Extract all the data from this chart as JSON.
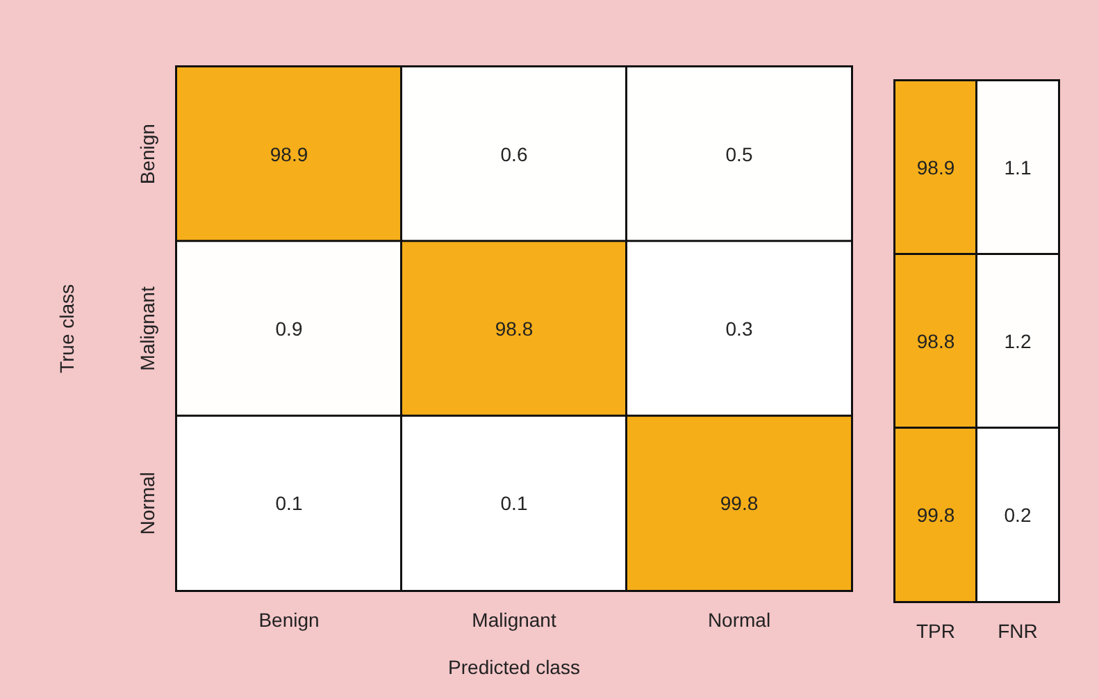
{
  "chart_data": [
    {
      "type": "heatmap",
      "xlabel": "Predicted class",
      "ylabel": "True class",
      "categories": [
        "Benign",
        "Malignant",
        "Normal"
      ],
      "y_categories": [
        "Benign",
        "Malignant",
        "Normal"
      ],
      "cells": [
        [
          98.9,
          0.6,
          0.5
        ],
        [
          0.9,
          98.8,
          0.3
        ],
        [
          0.1,
          0.1,
          99.8
        ]
      ],
      "color": "#f6ae18",
      "data_labels": true
    },
    {
      "type": "heatmap",
      "categories": [
        "TPR",
        "FNR"
      ],
      "y_categories": [
        null,
        null,
        null
      ],
      "cells": [
        [
          98.9,
          1.1
        ],
        [
          98.8,
          1.2
        ],
        [
          99.8,
          0.2
        ]
      ],
      "color": "#f6ae18",
      "data_labels": true,
      "tick_labels": "x"
    }
  ]
}
